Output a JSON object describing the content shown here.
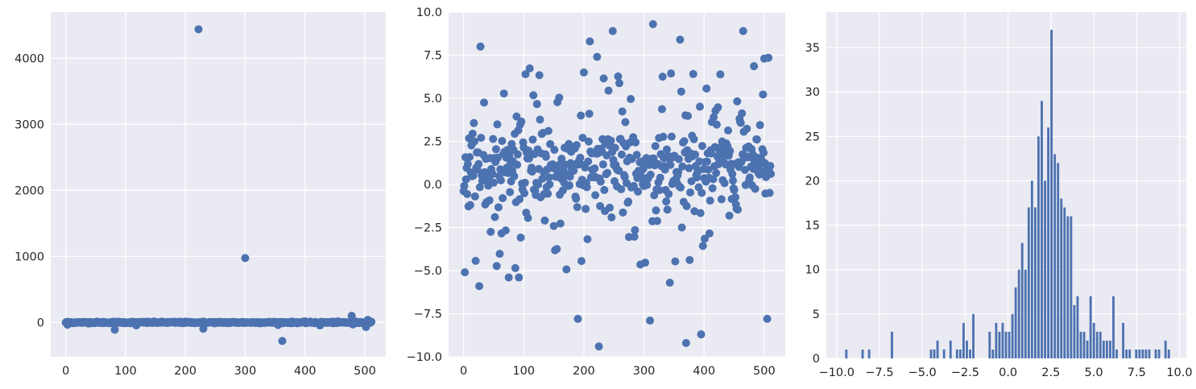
{
  "chart_data": [
    {
      "type": "scatter",
      "title": "",
      "xlabel": "",
      "ylabel": "",
      "xlim": [
        -25,
        535
      ],
      "ylim": [
        -520,
        4700
      ],
      "xticks": [
        0,
        100,
        200,
        300,
        400,
        500
      ],
      "yticks": [
        0,
        1000,
        2000,
        3000,
        4000
      ],
      "grid": true,
      "color": "#4c72b0",
      "series": [
        {
          "n": 512,
          "base_value": 0,
          "outliers": [
            {
              "x": 3,
              "y": -35
            },
            {
              "x": 82,
              "y": -110
            },
            {
              "x": 118,
              "y": -45
            },
            {
              "x": 222,
              "y": 4440
            },
            {
              "x": 230,
              "y": -95
            },
            {
              "x": 300,
              "y": 975
            },
            {
              "x": 355,
              "y": -40
            },
            {
              "x": 362,
              "y": -280
            },
            {
              "x": 425,
              "y": -45
            },
            {
              "x": 478,
              "y": 100
            },
            {
              "x": 480,
              "y": -30
            },
            {
              "x": 502,
              "y": -70
            },
            {
              "x": 505,
              "y": 40
            }
          ]
        }
      ]
    },
    {
      "type": "scatter",
      "title": "",
      "xlabel": "",
      "ylabel": "",
      "xlim": [
        -25,
        535
      ],
      "ylim": [
        -10,
        10
      ],
      "xticks": [
        0,
        100,
        200,
        300,
        400,
        500
      ],
      "yticks": [
        -10.0,
        -7.5,
        -5.0,
        -2.5,
        0.0,
        2.5,
        5.0,
        7.5,
        10.0
      ],
      "ytick_labels": [
        "−10.0",
        "−7.5",
        "−5.0",
        "−2.5",
        "0.0",
        "2.5",
        "5.0",
        "7.5",
        "10.0"
      ],
      "grid": true,
      "color": "#4c72b0",
      "series": [
        {
          "n": 512,
          "notable_points": [
            {
              "x": 2,
              "y": -5.1
            },
            {
              "x": 28,
              "y": 8.0
            },
            {
              "x": 26,
              "y": -5.9
            },
            {
              "x": 75,
              "y": -5.4
            },
            {
              "x": 92,
              "y": -5.4
            },
            {
              "x": 190,
              "y": -7.8
            },
            {
              "x": 210,
              "y": 8.3
            },
            {
              "x": 225,
              "y": -9.4
            },
            {
              "x": 222,
              "y": 7.4
            },
            {
              "x": 248,
              "y": 8.9
            },
            {
              "x": 315,
              "y": 9.3
            },
            {
              "x": 310,
              "y": -7.9
            },
            {
              "x": 360,
              "y": 8.4
            },
            {
              "x": 370,
              "y": -9.2
            },
            {
              "x": 395,
              "y": -8.7
            },
            {
              "x": 465,
              "y": 8.9
            },
            {
              "x": 500,
              "y": 7.3
            },
            {
              "x": 507,
              "y": 7.35
            },
            {
              "x": 505,
              "y": -7.8
            },
            {
              "x": 343,
              "y": -5.7
            }
          ]
        }
      ]
    },
    {
      "type": "bar",
      "title": "",
      "xlabel": "",
      "ylabel": "",
      "xlim": [
        -10.6,
        10.4
      ],
      "ylim": [
        0,
        39
      ],
      "xticks": [
        -10.0,
        -7.5,
        -5.0,
        -2.5,
        0.0,
        2.5,
        5.0,
        7.5,
        10.0
      ],
      "xtick_labels": [
        "−10.0",
        "−7.5",
        "−5.0",
        "−2.5",
        "0.0",
        "2.5",
        "5.0",
        "7.5",
        "10.0"
      ],
      "yticks": [
        0,
        5,
        10,
        15,
        20,
        25,
        30,
        35
      ],
      "grid": true,
      "color": "#4c72b0",
      "bins": 100,
      "bin_range": [
        -9.5,
        9.5
      ],
      "counts": [
        1,
        0,
        0,
        0,
        0,
        1,
        0,
        1,
        0,
        0,
        0,
        0,
        0,
        0,
        3,
        0,
        0,
        0,
        0,
        0,
        0,
        0,
        0,
        0,
        0,
        0,
        1,
        1,
        2,
        0,
        1,
        0,
        2,
        0,
        1,
        1,
        4,
        2,
        1,
        5,
        0,
        0,
        0,
        0,
        3,
        1,
        4,
        3,
        4,
        3,
        3,
        5,
        8,
        10,
        13,
        10,
        17,
        20,
        17,
        25,
        29,
        20,
        26,
        37,
        23,
        22,
        18,
        17,
        16,
        16,
        6,
        7,
        3,
        3,
        2,
        7,
        4,
        3,
        3,
        2,
        2,
        2,
        7,
        1,
        0,
        4,
        1,
        1,
        0,
        1,
        1,
        1,
        1,
        1,
        0,
        1,
        1,
        0,
        2,
        1
      ]
    }
  ]
}
